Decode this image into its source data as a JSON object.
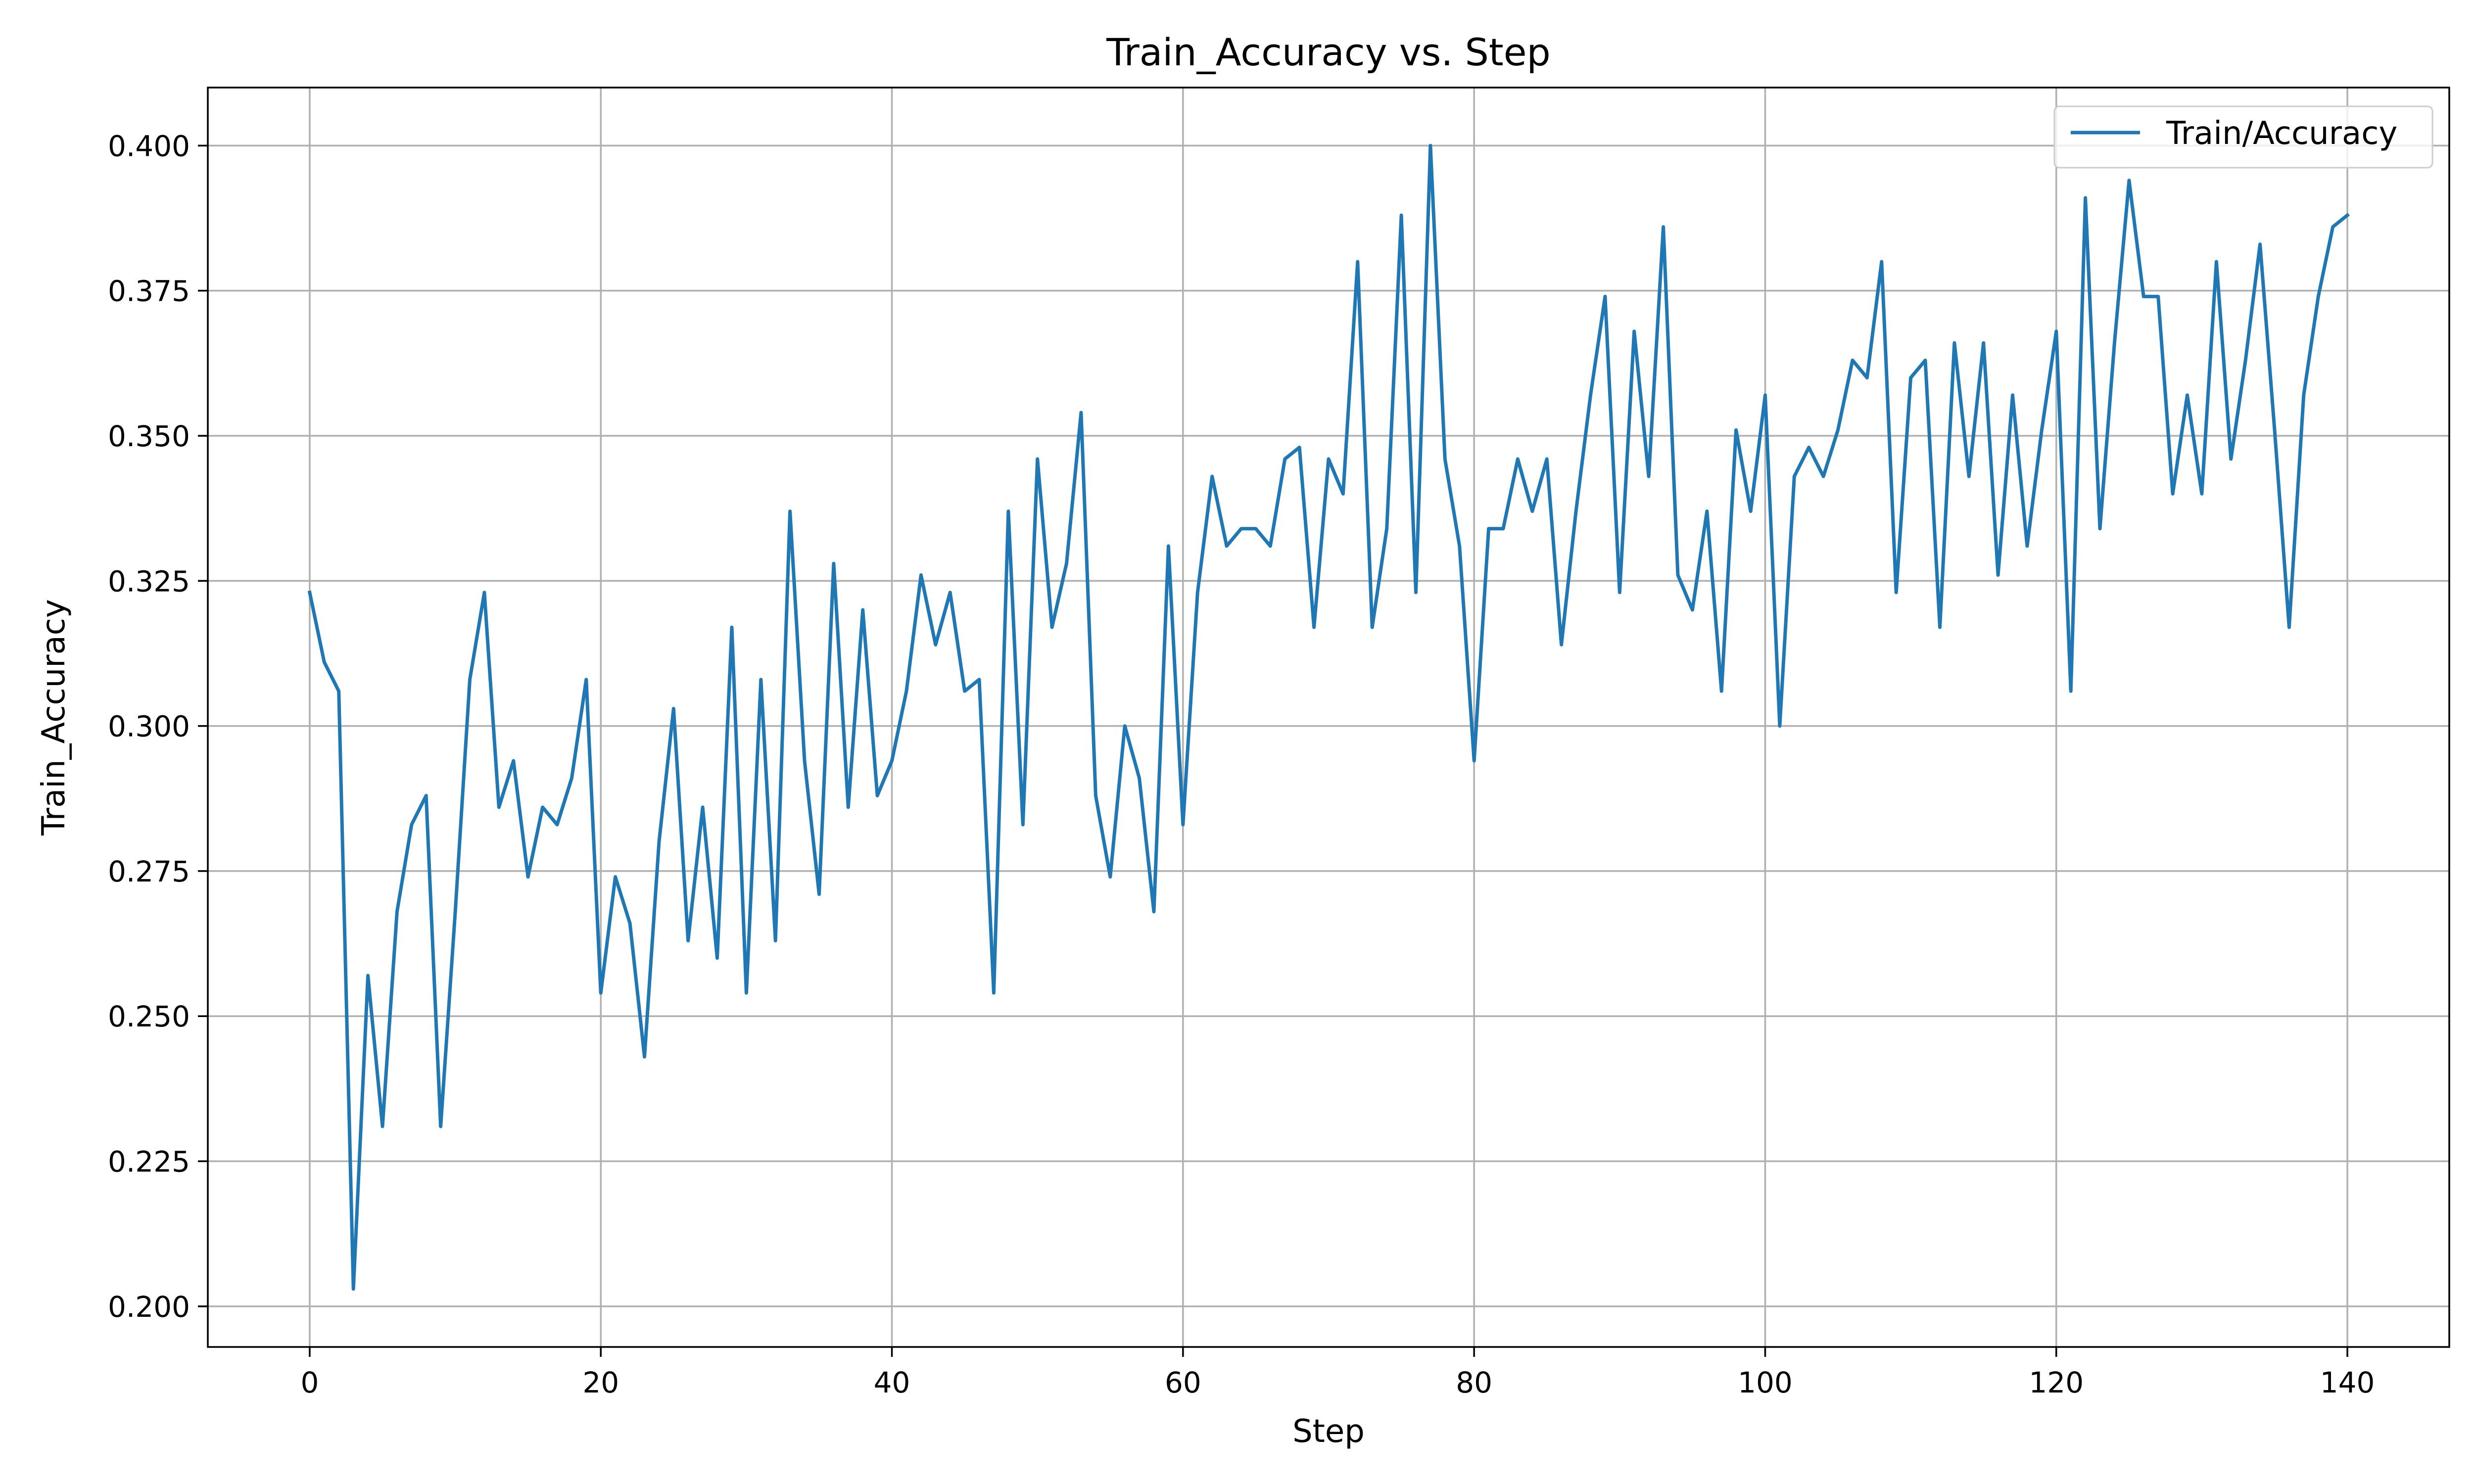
{
  "chart_data": {
    "type": "line",
    "title": "Train_Accuracy vs. Step",
    "xlabel": "Step",
    "ylabel": "Train_Accuracy",
    "xlim": [
      -7,
      147
    ],
    "ylim": [
      0.193,
      0.41
    ],
    "xticks": [
      0,
      20,
      40,
      60,
      80,
      100,
      120,
      140
    ],
    "xtick_labels": [
      "0",
      "20",
      "40",
      "60",
      "80",
      "100",
      "120",
      "140"
    ],
    "yticks": [
      0.2,
      0.225,
      0.25,
      0.275,
      0.3,
      0.325,
      0.35,
      0.375,
      0.4
    ],
    "ytick_labels": [
      "0.200",
      "0.225",
      "0.250",
      "0.275",
      "0.300",
      "0.325",
      "0.350",
      "0.375",
      "0.400"
    ],
    "grid": true,
    "legend_position": "top-right",
    "series": [
      {
        "name": "Train/Accuracy",
        "color": "#1f77b4",
        "x": [
          0,
          1,
          2,
          3,
          4,
          5,
          6,
          7,
          8,
          9,
          10,
          11,
          12,
          13,
          14,
          15,
          16,
          17,
          18,
          19,
          20,
          21,
          22,
          23,
          24,
          25,
          26,
          27,
          28,
          29,
          30,
          31,
          32,
          33,
          34,
          35,
          36,
          37,
          38,
          39,
          40,
          41,
          42,
          43,
          44,
          45,
          46,
          47,
          48,
          49,
          50,
          51,
          52,
          53,
          54,
          55,
          56,
          57,
          58,
          59,
          60,
          61,
          62,
          63,
          64,
          65,
          66,
          67,
          68,
          69,
          70,
          71,
          72,
          73,
          74,
          75,
          76,
          77,
          78,
          79,
          80,
          81,
          82,
          83,
          84,
          85,
          86,
          87,
          88,
          89,
          90,
          91,
          92,
          93,
          94,
          95,
          96,
          97,
          98,
          99,
          100,
          101,
          102,
          103,
          104,
          105,
          106,
          107,
          108,
          109,
          110,
          111,
          112,
          113,
          114,
          115,
          116,
          117,
          118,
          119,
          120,
          121,
          122,
          123,
          124,
          125,
          126,
          127,
          128,
          129,
          130,
          131,
          132,
          133,
          134,
          135,
          136,
          137,
          138,
          139,
          140
        ],
        "y": [
          0.323,
          0.311,
          0.306,
          0.203,
          0.257,
          0.231,
          0.268,
          0.283,
          0.288,
          0.231,
          0.268,
          0.308,
          0.323,
          0.286,
          0.294,
          0.274,
          0.286,
          0.283,
          0.291,
          0.308,
          0.254,
          0.274,
          0.266,
          0.243,
          0.28,
          0.303,
          0.263,
          0.286,
          0.26,
          0.317,
          0.254,
          0.308,
          0.263,
          0.337,
          0.294,
          0.271,
          0.328,
          0.286,
          0.32,
          0.288,
          0.294,
          0.306,
          0.326,
          0.314,
          0.323,
          0.306,
          0.308,
          0.254,
          0.337,
          0.283,
          0.346,
          0.317,
          0.328,
          0.354,
          0.288,
          0.274,
          0.3,
          0.291,
          0.268,
          0.331,
          0.283,
          0.323,
          0.343,
          0.331,
          0.334,
          0.334,
          0.331,
          0.346,
          0.348,
          0.317,
          0.346,
          0.34,
          0.38,
          0.317,
          0.334,
          0.388,
          0.323,
          0.4,
          0.346,
          0.331,
          0.294,
          0.334,
          0.334,
          0.346,
          0.337,
          0.346,
          0.314,
          0.337,
          0.357,
          0.374,
          0.323,
          0.368,
          0.343,
          0.386,
          0.326,
          0.32,
          0.337,
          0.306,
          0.351,
          0.337,
          0.357,
          0.3,
          0.343,
          0.348,
          0.343,
          0.351,
          0.363,
          0.36,
          0.38,
          0.323,
          0.36,
          0.363,
          0.317,
          0.366,
          0.343,
          0.366,
          0.326,
          0.357,
          0.331,
          0.351,
          0.368,
          0.306,
          0.391,
          0.334,
          0.366,
          0.394,
          0.374,
          0.374,
          0.34,
          0.357,
          0.34,
          0.38,
          0.346,
          0.363,
          0.383,
          0.351,
          0.317,
          0.357,
          0.374,
          0.386,
          0.388
        ]
      }
    ]
  }
}
